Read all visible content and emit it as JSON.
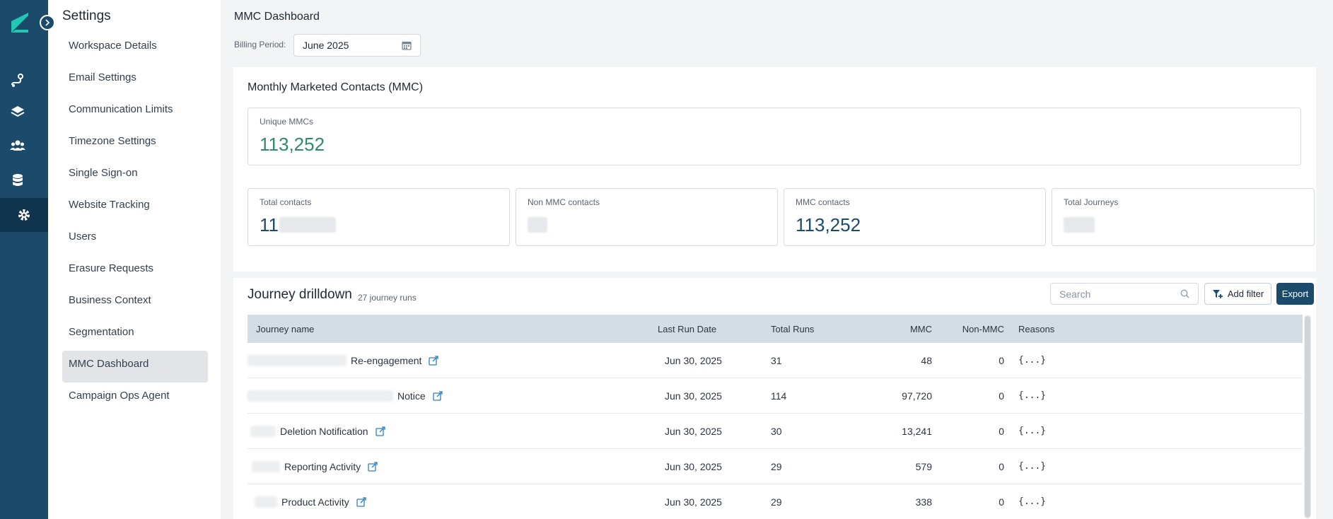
{
  "settings": {
    "title": "Settings",
    "items": [
      {
        "label": "Workspace Details",
        "active": false
      },
      {
        "label": "Email Settings",
        "active": false
      },
      {
        "label": "Communication Limits",
        "active": false
      },
      {
        "label": "Timezone Settings",
        "active": false
      },
      {
        "label": "Single Sign-on",
        "active": false
      },
      {
        "label": "Website Tracking",
        "active": false
      },
      {
        "label": "Users",
        "active": false
      },
      {
        "label": "Erasure Requests",
        "active": false
      },
      {
        "label": "Business Context",
        "active": false
      },
      {
        "label": "Segmentation",
        "active": false
      },
      {
        "label": "MMC Dashboard",
        "active": true
      },
      {
        "label": "Campaign Ops Agent",
        "active": false
      }
    ]
  },
  "rail": {
    "icons": [
      "journeys-icon",
      "layers-icon",
      "audience-icon",
      "database-icon",
      "gear-icon"
    ]
  },
  "header": {
    "title": "MMC Dashboard",
    "billing_label": "Billing Period:",
    "billing_value": "June 2025"
  },
  "mmc": {
    "title": "Monthly Marketed Contacts (MMC)",
    "unique_label": "Unique MMCs",
    "unique_value": "113,252",
    "stats": [
      {
        "label": "Total contacts",
        "value": "11"
      },
      {
        "label": "Non MMC contacts",
        "value": ""
      },
      {
        "label": "MMC contacts",
        "value": "113,252"
      },
      {
        "label": "Total Journeys",
        "value": ""
      }
    ]
  },
  "drilldown": {
    "title": "Journey drilldown",
    "count": "27 journey runs",
    "search_placeholder": "Search",
    "add_filter": "Add filter",
    "export": "Export",
    "columns": {
      "name": "Journey name",
      "date": "Last Run Date",
      "runs": "Total Runs",
      "mmc": "MMC",
      "non_mmc": "Non-MMC",
      "reasons": "Reasons"
    },
    "rows": [
      {
        "name": "Re-engagement",
        "date": "Jun 30, 2025",
        "runs": "31",
        "mmc": "48",
        "non_mmc": "0",
        "reasons": "{...}"
      },
      {
        "name": "Notice",
        "date": "Jun 30, 2025",
        "runs": "114",
        "mmc": "97,720",
        "non_mmc": "0",
        "reasons": "{...}"
      },
      {
        "name": "Deletion Notification",
        "date": "Jun 30, 2025",
        "runs": "30",
        "mmc": "13,241",
        "non_mmc": "0",
        "reasons": "{...}"
      },
      {
        "name": "Reporting Activity",
        "date": "Jun 30, 2025",
        "runs": "29",
        "mmc": "579",
        "non_mmc": "0",
        "reasons": "{...}"
      },
      {
        "name": "Product Activity",
        "date": "Jun 30, 2025",
        "runs": "29",
        "mmc": "338",
        "non_mmc": "0",
        "reasons": "{...}"
      }
    ]
  },
  "colors": {
    "rail": "#1c4a6b",
    "accent_green": "#2e8b6e",
    "accent_teal": "#21c7b4",
    "header_row": "#d4dde4"
  }
}
